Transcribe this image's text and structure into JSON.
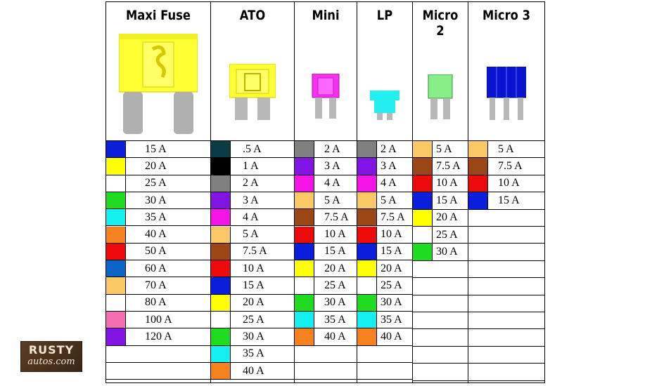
{
  "colors": {
    "blue": "#0a1edc",
    "yellow": "#ffff00",
    "white": "#ffffff",
    "green": "#20dc20",
    "cyan": "#14f0f0",
    "orange": "#f5821e",
    "red": "#ee0a0a",
    "steel_blue": "#0a64c8",
    "tan": "#fac864",
    "pink": "#f56eb4",
    "violet": "#8214e6",
    "dark_teal": "#0a3c46",
    "black": "#000000",
    "gray": "#808080",
    "magenta": "#f514e6",
    "brown": "#9b4614"
  },
  "fuse_types": [
    {
      "name": "Maxi Fuse",
      "icon": "maxi-fuse-icon",
      "ratings": [
        {
          "amps": "15 A",
          "color": "#0a1edc"
        },
        {
          "amps": "20 A",
          "color": "#ffff00"
        },
        {
          "amps": "25 A",
          "color": "#ffffff"
        },
        {
          "amps": "30 A",
          "color": "#20dc20"
        },
        {
          "amps": "35 A",
          "color": "#14f0f0"
        },
        {
          "amps": "40 A",
          "color": "#f5821e"
        },
        {
          "amps": "50 A",
          "color": "#ee0a0a"
        },
        {
          "amps": "60 A",
          "color": "#0a64c8"
        },
        {
          "amps": "70 A",
          "color": "#fac864"
        },
        {
          "amps": "80 A",
          "color": "#ffffff"
        },
        {
          "amps": "100 A",
          "color": "#f56eb4"
        },
        {
          "amps": "120 A",
          "color": "#8214e6"
        }
      ]
    },
    {
      "name": "ATO",
      "icon": "ato-fuse-icon",
      "ratings": [
        {
          "amps": ".5 A",
          "color": "#0a3c46"
        },
        {
          "amps": "1 A",
          "color": "#000000"
        },
        {
          "amps": "2 A",
          "color": "#808080"
        },
        {
          "amps": "3 A",
          "color": "#8214e6"
        },
        {
          "amps": "4 A",
          "color": "#f514e6"
        },
        {
          "amps": "5 A",
          "color": "#fac864"
        },
        {
          "amps": "7.5 A",
          "color": "#9b4614"
        },
        {
          "amps": "10 A",
          "color": "#ee0a0a"
        },
        {
          "amps": "15 A",
          "color": "#0a1edc"
        },
        {
          "amps": "20 A",
          "color": "#ffff00"
        },
        {
          "amps": "25 A",
          "color": "#ffffff"
        },
        {
          "amps": "30 A",
          "color": "#20dc20"
        },
        {
          "amps": "35 A",
          "color": "#14f0f0"
        },
        {
          "amps": "40 A",
          "color": "#f5821e"
        }
      ]
    },
    {
      "name": "Mini",
      "icon": "mini-fuse-icon",
      "ratings": [
        {
          "amps": "2 A",
          "color": "#808080"
        },
        {
          "amps": "3 A",
          "color": "#8214e6"
        },
        {
          "amps": "4 A",
          "color": "#f514e6"
        },
        {
          "amps": "5 A",
          "color": "#fac864"
        },
        {
          "amps": "7.5 A",
          "color": "#9b4614"
        },
        {
          "amps": "10 A",
          "color": "#ee0a0a"
        },
        {
          "amps": "15 A",
          "color": "#0a1edc"
        },
        {
          "amps": "20 A",
          "color": "#ffff00"
        },
        {
          "amps": "25 A",
          "color": "#ffffff"
        },
        {
          "amps": "30 A",
          "color": "#20dc20"
        },
        {
          "amps": "35 A",
          "color": "#14f0f0"
        },
        {
          "amps": "40 A",
          "color": "#f5821e"
        }
      ]
    },
    {
      "name": "LP",
      "icon": "lp-fuse-icon",
      "ratings": [
        {
          "amps": "2 A",
          "color": "#808080"
        },
        {
          "amps": "3 A",
          "color": "#8214e6"
        },
        {
          "amps": "4 A",
          "color": "#f514e6"
        },
        {
          "amps": "5 A",
          "color": "#fac864"
        },
        {
          "amps": "7.5 A",
          "color": "#9b4614"
        },
        {
          "amps": "10 A",
          "color": "#ee0a0a"
        },
        {
          "amps": "15 A",
          "color": "#0a1edc"
        },
        {
          "amps": "20 A",
          "color": "#ffff00"
        },
        {
          "amps": "25 A",
          "color": "#ffffff"
        },
        {
          "amps": "30 A",
          "color": "#20dc20"
        },
        {
          "amps": "35 A",
          "color": "#14f0f0"
        },
        {
          "amps": "40 A",
          "color": "#f5821e"
        }
      ]
    },
    {
      "name": "Micro 2",
      "icon": "micro2-fuse-icon",
      "ratings": [
        {
          "amps": "5 A",
          "color": "#fac864"
        },
        {
          "amps": "7.5 A",
          "color": "#9b4614"
        },
        {
          "amps": "10 A",
          "color": "#ee0a0a"
        },
        {
          "amps": "15 A",
          "color": "#0a1edc"
        },
        {
          "amps": "20 A",
          "color": "#ffff00"
        },
        {
          "amps": "25 A",
          "color": "#ffffff"
        },
        {
          "amps": "30 A",
          "color": "#20dc20"
        }
      ]
    },
    {
      "name": "Micro 3",
      "icon": "micro3-fuse-icon",
      "ratings": [
        {
          "amps": "5 A",
          "color": "#fac864"
        },
        {
          "amps": "7.5 A",
          "color": "#9b4614"
        },
        {
          "amps": "10 A",
          "color": "#ee0a0a"
        },
        {
          "amps": "15 A",
          "color": "#0a1edc"
        }
      ]
    }
  ],
  "logo": {
    "line1": "RUSTY",
    "line2": "autos.com"
  }
}
